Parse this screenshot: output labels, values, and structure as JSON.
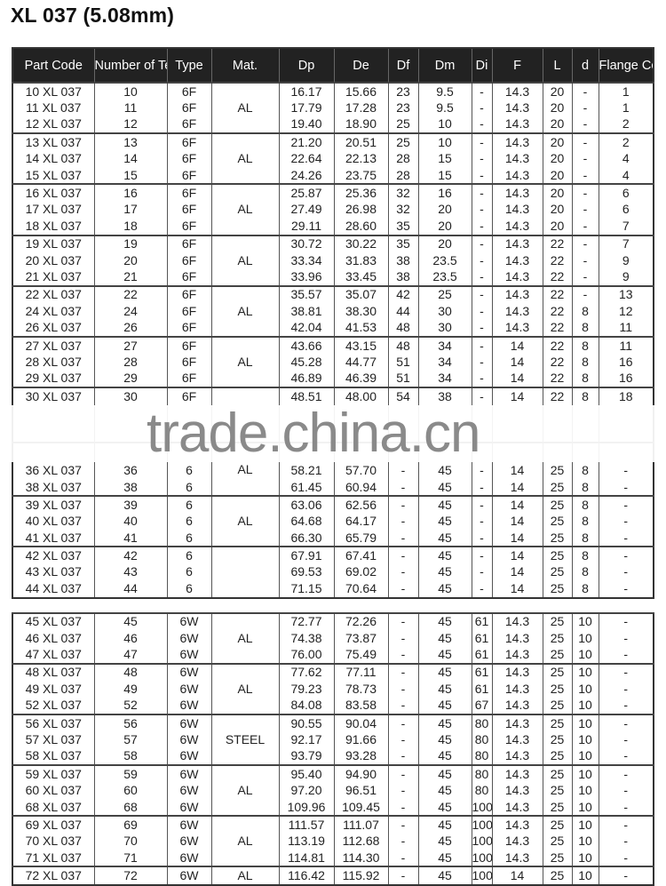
{
  "title": "XL 037 (5.08mm)",
  "columns": [
    "Part Code",
    "Number of Teeth",
    "Type",
    "Mat.",
    "Dp",
    "De",
    "Df",
    "Dm",
    "Di",
    "F",
    "L",
    "d",
    "Flange Code"
  ],
  "watermark": "trade.china.cn",
  "table1": [
    {
      "mat": "AL",
      "rows": [
        [
          "10 XL 037",
          "10",
          "6F",
          "16.17",
          "15.66",
          "23",
          "9.5",
          "-",
          "14.3",
          "20",
          "-",
          "1"
        ],
        [
          "11 XL 037",
          "11",
          "6F",
          "17.79",
          "17.28",
          "23",
          "9.5",
          "-",
          "14.3",
          "20",
          "-",
          "1"
        ],
        [
          "12 XL 037",
          "12",
          "6F",
          "19.40",
          "18.90",
          "25",
          "10",
          "-",
          "14.3",
          "20",
          "-",
          "2"
        ]
      ]
    },
    {
      "mat": "AL",
      "rows": [
        [
          "13 XL 037",
          "13",
          "6F",
          "21.20",
          "20.51",
          "25",
          "10",
          "-",
          "14.3",
          "20",
          "-",
          "2"
        ],
        [
          "14 XL 037",
          "14",
          "6F",
          "22.64",
          "22.13",
          "28",
          "15",
          "-",
          "14.3",
          "20",
          "-",
          "4"
        ],
        [
          "15 XL 037",
          "15",
          "6F",
          "24.26",
          "23.75",
          "28",
          "15",
          "-",
          "14.3",
          "20",
          "-",
          "4"
        ]
      ]
    },
    {
      "mat": "AL",
      "rows": [
        [
          "16 XL 037",
          "16",
          "6F",
          "25.87",
          "25.36",
          "32",
          "16",
          "-",
          "14.3",
          "20",
          "-",
          "6"
        ],
        [
          "17 XL 037",
          "17",
          "6F",
          "27.49",
          "26.98",
          "32",
          "20",
          "-",
          "14.3",
          "20",
          "-",
          "6"
        ],
        [
          "18 XL 037",
          "18",
          "6F",
          "29.11",
          "28.60",
          "35",
          "20",
          "-",
          "14.3",
          "20",
          "-",
          "7"
        ]
      ]
    },
    {
      "mat": "AL",
      "rows": [
        [
          "19 XL 037",
          "19",
          "6F",
          "30.72",
          "30.22",
          "35",
          "20",
          "-",
          "14.3",
          "22",
          "-",
          "7"
        ],
        [
          "20 XL 037",
          "20",
          "6F",
          "33.34",
          "31.83",
          "38",
          "23.5",
          "-",
          "14.3",
          "22",
          "-",
          "9"
        ],
        [
          "21 XL 037",
          "21",
          "6F",
          "33.96",
          "33.45",
          "38",
          "23.5",
          "-",
          "14.3",
          "22",
          "-",
          "9"
        ]
      ]
    },
    {
      "mat": "AL",
      "rows": [
        [
          "22 XL 037",
          "22",
          "6F",
          "35.57",
          "35.07",
          "42",
          "25",
          "-",
          "14.3",
          "22",
          "-",
          "13"
        ],
        [
          "24 XL 037",
          "24",
          "6F",
          "38.81",
          "38.30",
          "44",
          "30",
          "-",
          "14.3",
          "22",
          "8",
          "12"
        ],
        [
          "26 XL 037",
          "26",
          "6F",
          "42.04",
          "41.53",
          "48",
          "30",
          "-",
          "14.3",
          "22",
          "8",
          "11"
        ]
      ]
    },
    {
      "mat": "AL",
      "rows": [
        [
          "27 XL 037",
          "27",
          "6F",
          "43.66",
          "43.15",
          "48",
          "34",
          "-",
          "14",
          "22",
          "8",
          "11"
        ],
        [
          "28 XL 037",
          "28",
          "6F",
          "45.28",
          "44.77",
          "51",
          "34",
          "-",
          "14",
          "22",
          "8",
          "16"
        ],
        [
          "29 XL 037",
          "29",
          "6F",
          "46.89",
          "46.39",
          "51",
          "34",
          "-",
          "14",
          "22",
          "8",
          "16"
        ]
      ]
    },
    {
      "mat": "",
      "rows": [
        [
          "30 XL 037",
          "30",
          "6F",
          "48.51",
          "48.00",
          "54",
          "38",
          "-",
          "14",
          "22",
          "8",
          "18"
        ],
        null,
        null
      ]
    },
    {
      "mat": "AL",
      "rows": [
        null,
        [
          "36 XL 037",
          "36",
          "6",
          "58.21",
          "57.70",
          "-",
          "45",
          "-",
          "14",
          "25",
          "8",
          "-"
        ],
        [
          "38 XL 037",
          "38",
          "6",
          "61.45",
          "60.94",
          "-",
          "45",
          "-",
          "14",
          "25",
          "8",
          "-"
        ]
      ]
    },
    {
      "mat": "AL",
      "rows": [
        [
          "39 XL 037",
          "39",
          "6",
          "63.06",
          "62.56",
          "-",
          "45",
          "-",
          "14",
          "25",
          "8",
          "-"
        ],
        [
          "40 XL 037",
          "40",
          "6",
          "64.68",
          "64.17",
          "-",
          "45",
          "-",
          "14",
          "25",
          "8",
          "-"
        ],
        [
          "41 XL 037",
          "41",
          "6",
          "66.30",
          "65.79",
          "-",
          "45",
          "-",
          "14",
          "25",
          "8",
          "-"
        ]
      ]
    },
    {
      "mat": "",
      "rows": [
        [
          "42 XL 037",
          "42",
          "6",
          "67.91",
          "67.41",
          "-",
          "45",
          "-",
          "14",
          "25",
          "8",
          "-"
        ],
        [
          "43 XL 037",
          "43",
          "6",
          "69.53",
          "69.02",
          "-",
          "45",
          "-",
          "14",
          "25",
          "8",
          "-"
        ],
        [
          "44 XL 037",
          "44",
          "6",
          "71.15",
          "70.64",
          "-",
          "45",
          "-",
          "14",
          "25",
          "8",
          "-"
        ]
      ]
    }
  ],
  "table2": [
    {
      "mat": "AL",
      "rows": [
        [
          "45 XL 037",
          "45",
          "6W",
          "72.77",
          "72.26",
          "-",
          "45",
          "61",
          "14.3",
          "25",
          "10",
          "-"
        ],
        [
          "46 XL 037",
          "46",
          "6W",
          "74.38",
          "73.87",
          "-",
          "45",
          "61",
          "14.3",
          "25",
          "10",
          "-"
        ],
        [
          "47 XL 037",
          "47",
          "6W",
          "76.00",
          "75.49",
          "-",
          "45",
          "61",
          "14.3",
          "25",
          "10",
          "-"
        ]
      ]
    },
    {
      "mat": "AL",
      "rows": [
        [
          "48 XL 037",
          "48",
          "6W",
          "77.62",
          "77.11",
          "-",
          "45",
          "61",
          "14.3",
          "25",
          "10",
          "-"
        ],
        [
          "49 XL 037",
          "49",
          "6W",
          "79.23",
          "78.73",
          "-",
          "45",
          "61",
          "14.3",
          "25",
          "10",
          "-"
        ],
        [
          "52 XL 037",
          "52",
          "6W",
          "84.08",
          "83.58",
          "-",
          "45",
          "67",
          "14.3",
          "25",
          "10",
          "-"
        ]
      ]
    },
    {
      "mat": "STEEL",
      "rows": [
        [
          "56 XL 037",
          "56",
          "6W",
          "90.55",
          "90.04",
          "-",
          "45",
          "80",
          "14.3",
          "25",
          "10",
          "-"
        ],
        [
          "57 XL 037",
          "57",
          "6W",
          "92.17",
          "91.66",
          "-",
          "45",
          "80",
          "14.3",
          "25",
          "10",
          "-"
        ],
        [
          "58 XL 037",
          "58",
          "6W",
          "93.79",
          "93.28",
          "-",
          "45",
          "80",
          "14.3",
          "25",
          "10",
          "-"
        ]
      ]
    },
    {
      "mat": "AL",
      "rows": [
        [
          "59 XL 037",
          "59",
          "6W",
          "95.40",
          "94.90",
          "-",
          "45",
          "80",
          "14.3",
          "25",
          "10",
          "-"
        ],
        [
          "60 XL 037",
          "60",
          "6W",
          "97.20",
          "96.51",
          "-",
          "45",
          "80",
          "14.3",
          "25",
          "10",
          "-"
        ],
        [
          "68 XL 037",
          "68",
          "6W",
          "109.96",
          "109.45",
          "-",
          "45",
          "100",
          "14.3",
          "25",
          "10",
          "-"
        ]
      ]
    },
    {
      "mat": "AL",
      "rows": [
        [
          "69 XL 037",
          "69",
          "6W",
          "111.57",
          "111.07",
          "-",
          "45",
          "100",
          "14.3",
          "25",
          "10",
          "-"
        ],
        [
          "70 XL 037",
          "70",
          "6W",
          "113.19",
          "112.68",
          "-",
          "45",
          "100",
          "14.3",
          "25",
          "10",
          "-"
        ],
        [
          "71 XL 037",
          "71",
          "6W",
          "114.81",
          "114.30",
          "-",
          "45",
          "100",
          "14.3",
          "25",
          "10",
          "-"
        ]
      ]
    },
    {
      "mat": "AL",
      "rows": [
        [
          "72 XL 037",
          "72",
          "6W",
          "116.42",
          "115.92",
          "-",
          "45",
          "100",
          "14",
          "25",
          "10",
          "-"
        ]
      ]
    }
  ]
}
